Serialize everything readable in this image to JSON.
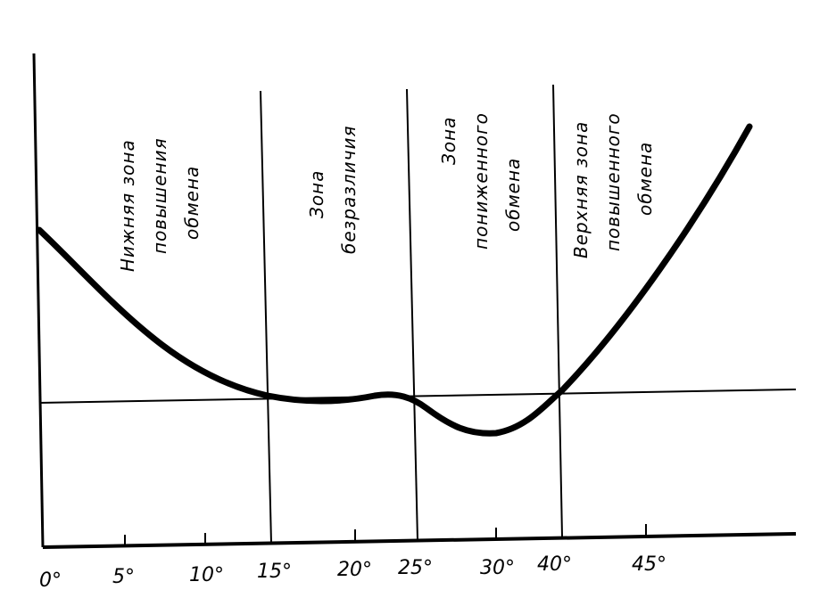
{
  "chart_data": {
    "type": "line",
    "title": "",
    "xlabel": "",
    "ylabel": "",
    "x_ticks": [
      "0°",
      "5°",
      "10°",
      "15°",
      "20°",
      "25°",
      "30°",
      "40°",
      "45°"
    ],
    "zone_dividers": [
      "15°",
      "25°",
      "40°"
    ],
    "zones": [
      {
        "label_lines": [
          "Нижняя зона",
          "повышения",
          "обмена"
        ]
      },
      {
        "label_lines": [
          "Зона",
          "безразличия"
        ]
      },
      {
        "label_lines": [
          "Зона",
          "пониженного",
          "обмена"
        ]
      },
      {
        "label_lines": [
          "Верхняя зона",
          "повышенного",
          "обмена"
        ]
      }
    ],
    "baseline": "normal metabolism level",
    "grid": false,
    "legend": "none"
  }
}
